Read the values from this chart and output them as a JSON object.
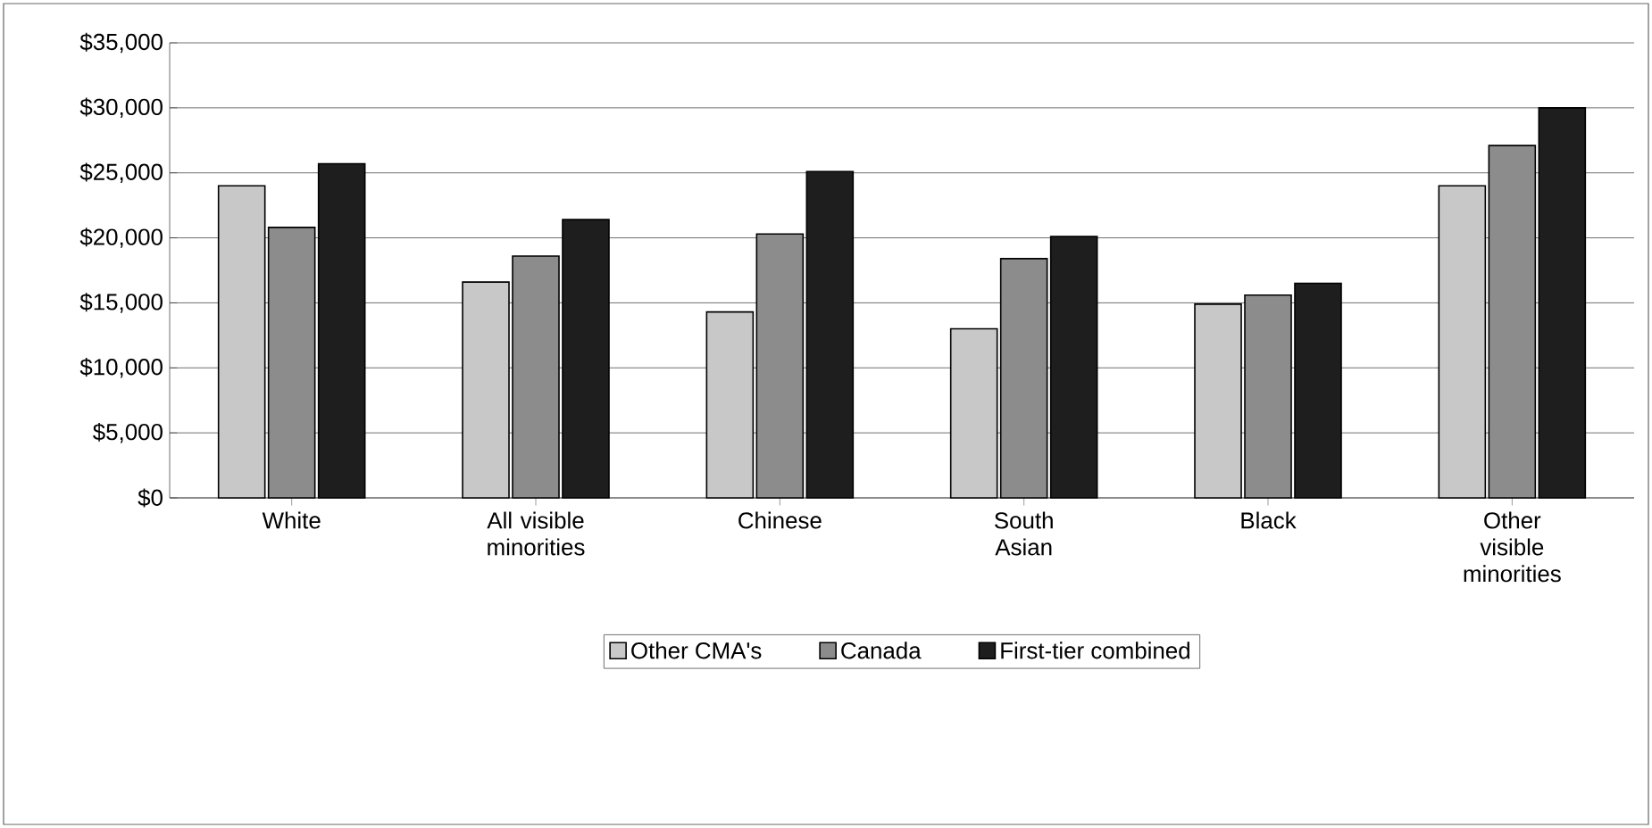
{
  "chart_data": {
    "type": "bar",
    "categories": [
      "White",
      "All visible minorities",
      "Chinese",
      "South Asian",
      "Black",
      "Other visible minorities"
    ],
    "series": [
      {
        "name": "Other CMA's",
        "color": "#c8c8c8",
        "values": [
          24000,
          16600,
          14300,
          13000,
          14900,
          24000
        ]
      },
      {
        "name": "Canada",
        "color": "#8c8c8c",
        "values": [
          20800,
          18600,
          20300,
          18400,
          15600,
          27100
        ]
      },
      {
        "name": "First-tier combined",
        "color": "#1e1e1e",
        "values": [
          25700,
          21400,
          25100,
          20100,
          16500,
          30000
        ]
      }
    ],
    "ylim": [
      0,
      35000
    ],
    "yticks": [
      {
        "value": 0,
        "label": "$0"
      },
      {
        "value": 5000,
        "label": "$5,000"
      },
      {
        "value": 10000,
        "label": "$10,000"
      },
      {
        "value": 15000,
        "label": "$15,000"
      },
      {
        "value": 20000,
        "label": "$20,000"
      },
      {
        "value": 25000,
        "label": "$25,000"
      },
      {
        "value": 30000,
        "label": "$30,000"
      },
      {
        "value": 35000,
        "label": "$35,000"
      }
    ],
    "grid": "y",
    "legend": "bottom"
  }
}
